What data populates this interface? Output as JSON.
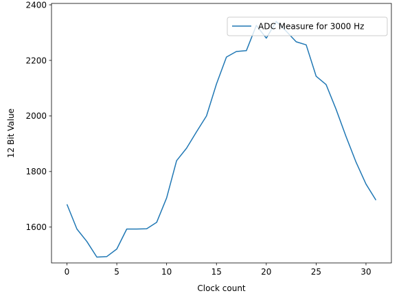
{
  "chart_data": {
    "type": "line",
    "title": "",
    "xlabel": "Clock count",
    "ylabel": "12 Bit Value",
    "xlim": [
      -1.55,
      32.55
    ],
    "ylim": [
      1471,
      2405
    ],
    "xticks": [
      0,
      5,
      10,
      15,
      20,
      25,
      30
    ],
    "yticks": [
      1600,
      1800,
      2000,
      2200,
      2400
    ],
    "grid": false,
    "legend_position": "top-right",
    "series": [
      {
        "name": "ADC Measure for 3000 Hz",
        "color": "#1f77b4",
        "x": [
          0,
          1,
          2,
          3,
          4,
          5,
          6,
          7,
          8,
          9,
          10,
          11,
          12,
          13,
          14,
          15,
          16,
          17,
          18,
          19,
          20,
          21,
          22,
          23,
          24,
          25,
          26,
          27,
          28,
          29,
          30,
          31
        ],
        "y": [
          1682,
          1593,
          1548,
          1492,
          1494,
          1521,
          1593,
          1593,
          1594,
          1617,
          1705,
          1839,
          1884,
          1943,
          2000,
          2115,
          2212,
          2232,
          2235,
          2326,
          2280,
          2340,
          2305,
          2267,
          2256,
          2143,
          2113,
          2024,
          1926,
          1834,
          1755,
          1697
        ]
      }
    ]
  }
}
